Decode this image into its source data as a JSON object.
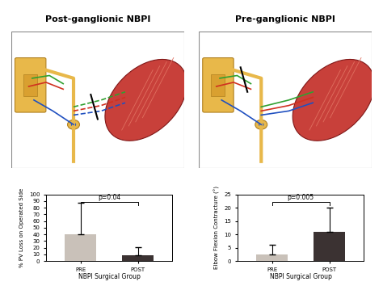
{
  "illustrations": [
    {
      "title": "Post-ganglionic NBPI"
    },
    {
      "title": "Pre-ganglionic NBPI"
    }
  ],
  "chart_data": [
    {
      "type": "bar",
      "categories": [
        "PRE",
        "POST"
      ],
      "values": [
        40,
        8
      ],
      "errors": [
        47,
        13
      ],
      "colors": [
        "#c9c1b9",
        "#3b3232"
      ],
      "ylabel": "% PV Loss on Operated Side",
      "xlabel": "NBPI Surgical Group",
      "annotation": "p=0.04",
      "ylim": [
        0,
        100
      ],
      "yticks": [
        0,
        10,
        20,
        30,
        40,
        50,
        60,
        70,
        80,
        90,
        100
      ]
    },
    {
      "type": "bar",
      "categories": [
        "PRE",
        "POST"
      ],
      "values": [
        2.5,
        11
      ],
      "errors": [
        3.5,
        9
      ],
      "colors": [
        "#c9c1b9",
        "#3b3232"
      ],
      "ylabel": "Elbow Flexion Contracture (°)",
      "xlabel": "NBPI Surgical Group",
      "annotation": "p=0.005",
      "ylim": [
        0,
        25
      ],
      "yticks": [
        0,
        5,
        10,
        15,
        20,
        25
      ]
    }
  ]
}
